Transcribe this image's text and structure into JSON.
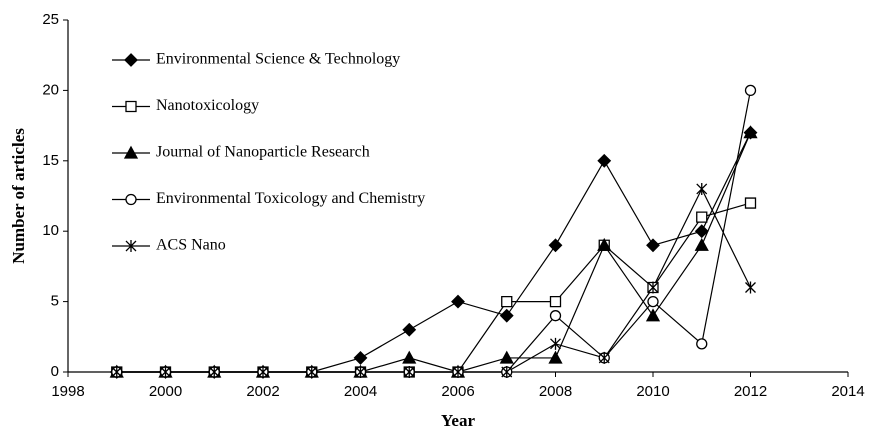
{
  "chart_data": {
    "type": "line",
    "xlabel": "Year",
    "ylabel": "Number of articles",
    "x": [
      1999,
      2000,
      2001,
      2002,
      2003,
      2004,
      2005,
      2006,
      2007,
      2008,
      2009,
      2010,
      2011,
      2012
    ],
    "series": [
      {
        "name": "Environmental Science & Technology",
        "color": "#000000",
        "marker": "diamond",
        "values": [
          0,
          0,
          0,
          0,
          0,
          1,
          3,
          5,
          4,
          9,
          15,
          9,
          10,
          17
        ]
      },
      {
        "name": "Nanotoxicology",
        "color": "#000000",
        "marker": "square",
        "values": [
          0,
          0,
          0,
          0,
          0,
          0,
          0,
          0,
          5,
          5,
          9,
          6,
          11,
          12
        ]
      },
      {
        "name": "Journal of Nanoparticle Research",
        "color": "#000000",
        "marker": "triangle",
        "values": [
          0,
          0,
          0,
          0,
          0,
          0,
          1,
          0,
          1,
          1,
          9,
          4,
          9,
          17
        ]
      },
      {
        "name": "Environmental Toxicology and Chemistry",
        "color": "#000000",
        "marker": "circle",
        "values": [
          0,
          0,
          0,
          0,
          0,
          0,
          0,
          0,
          0,
          4,
          1,
          5,
          2,
          20
        ]
      },
      {
        "name": "ACS Nano",
        "color": "#000000",
        "marker": "star",
        "values": [
          0,
          0,
          0,
          0,
          0,
          0,
          0,
          0,
          0,
          2,
          1,
          6,
          13,
          6
        ]
      }
    ],
    "xlim": [
      1998,
      2014
    ],
    "xticks": [
      1998,
      2000,
      2002,
      2004,
      2006,
      2008,
      2010,
      2012,
      2014
    ],
    "ylim": [
      0,
      25
    ],
    "yticks": [
      0,
      5,
      10,
      15,
      20,
      25
    ],
    "grid": false,
    "legend": "upper left"
  }
}
